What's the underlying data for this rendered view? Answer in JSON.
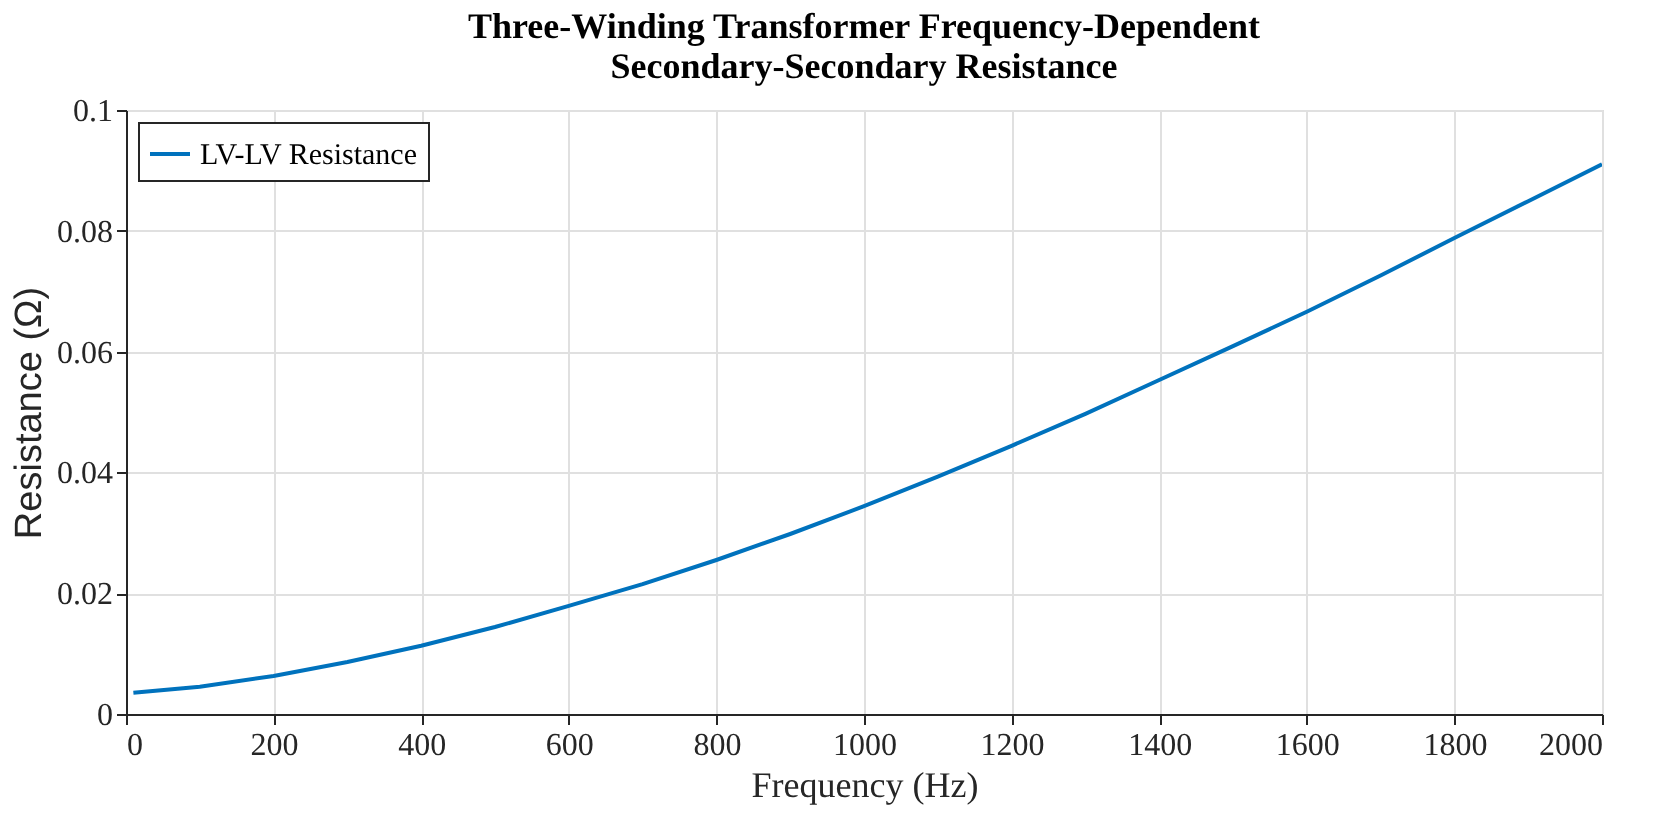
{
  "chart_data": {
    "type": "line",
    "title": "Three-Winding Transformer Frequency-Dependent\nSecondary-Secondary Resistance",
    "xlabel": "Frequency (Hz)",
    "ylabel": "Resistance (Ω)",
    "x": [
      10,
      100,
      200,
      300,
      400,
      500,
      600,
      700,
      800,
      900,
      1000,
      1100,
      1200,
      1300,
      1400,
      1500,
      1600,
      1700,
      1800,
      1900,
      2000
    ],
    "series": [
      {
        "name": "LV-LV Resistance",
        "color": "#0072bd",
        "values": [
          0.0035,
          0.0045,
          0.0063,
          0.0086,
          0.0113,
          0.0144,
          0.0179,
          0.0215,
          0.0255,
          0.0298,
          0.0344,
          0.0393,
          0.0444,
          0.0497,
          0.0553,
          0.0609,
          0.0666,
          0.0726,
          0.0788,
          0.0849,
          0.091
        ]
      }
    ],
    "xlim": [
      0,
      2000
    ],
    "xticks": [
      0,
      200,
      400,
      600,
      800,
      1000,
      1200,
      1400,
      1600,
      1800,
      2000
    ],
    "ylim": [
      0,
      0.1
    ],
    "yticks": [
      0,
      0.02,
      0.04,
      0.06,
      0.08,
      0.1
    ],
    "grid": true,
    "legend": "top left",
    "marker": "none",
    "line_style": "solid"
  }
}
